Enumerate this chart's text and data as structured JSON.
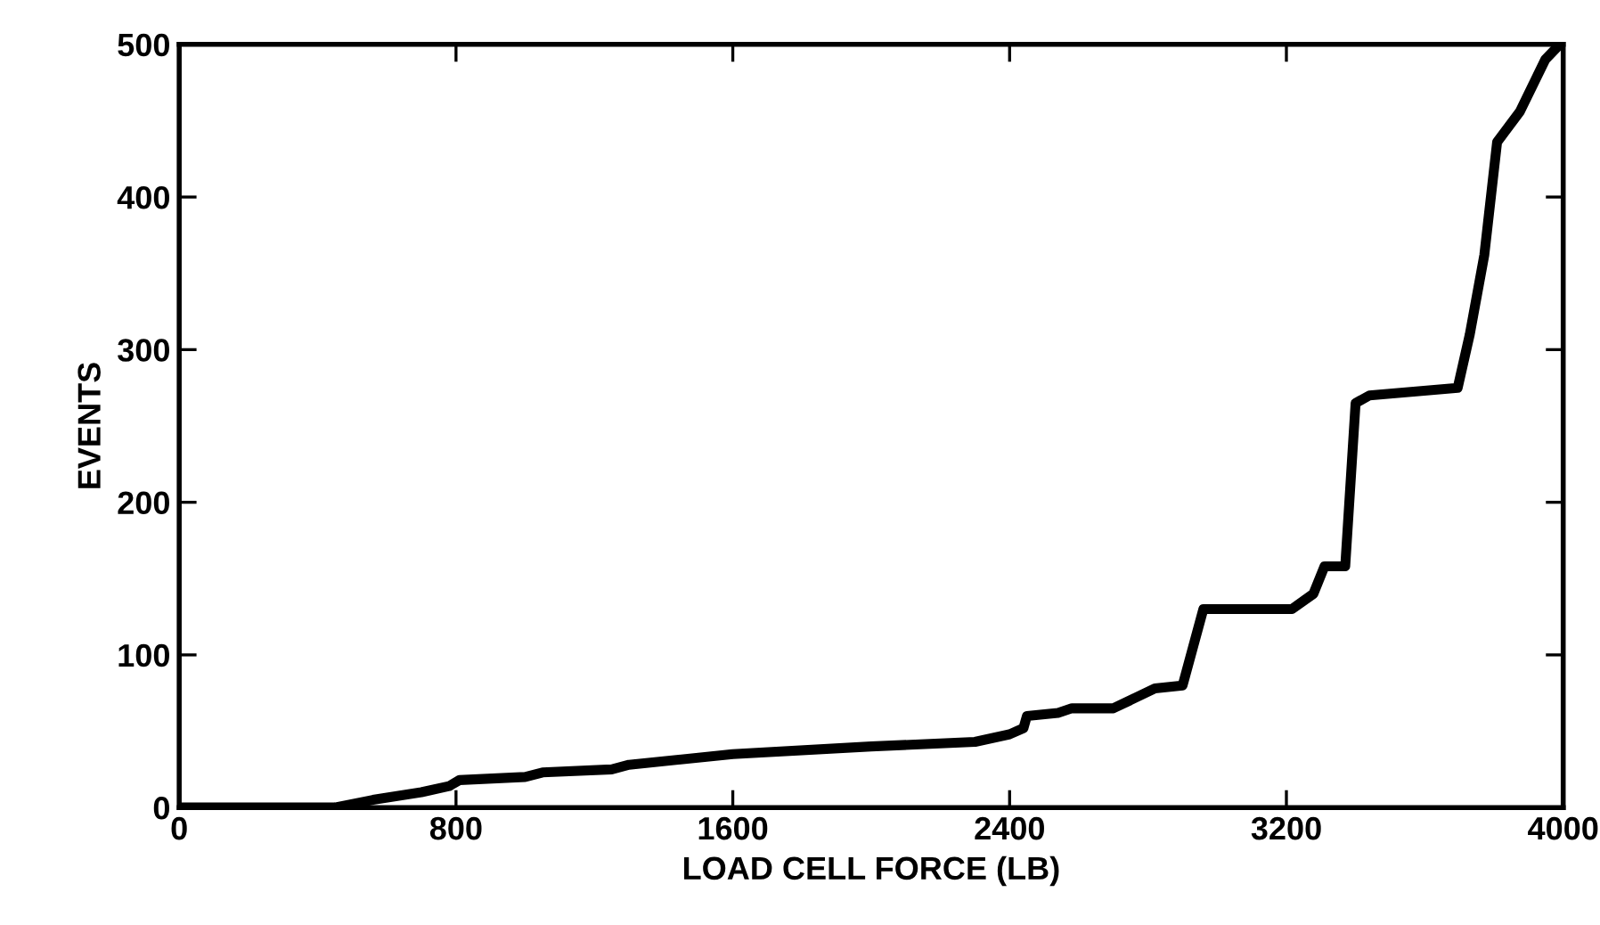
{
  "chart_data": {
    "type": "line",
    "xlabel": "LOAD CELL FORCE (LB)",
    "ylabel": "EVENTS",
    "xlim": [
      0,
      4000
    ],
    "ylim": [
      0,
      500
    ],
    "xticks": [
      0,
      800,
      1600,
      2400,
      3200,
      4000
    ],
    "yticks": [
      0,
      100,
      200,
      300,
      400,
      500
    ],
    "grid": false,
    "marker": "none",
    "line_style": "solid",
    "series": [
      {
        "color": "#000000",
        "x": [
          0,
          450,
          560,
          700,
          780,
          810,
          1000,
          1050,
          1250,
          1300,
          1600,
          2000,
          2300,
          2400,
          2440,
          2450,
          2540,
          2580,
          2700,
          2820,
          2900,
          2960,
          3216,
          3278,
          3310,
          3370,
          3400,
          3440,
          3695,
          3730,
          3772,
          3809,
          3875,
          3948,
          3990
        ],
        "values": [
          0,
          0,
          5,
          10,
          14,
          18,
          20,
          23,
          25,
          28,
          35,
          40,
          43,
          48,
          52,
          60,
          62,
          65,
          65,
          78,
          80,
          130,
          130,
          140,
          158,
          158,
          265,
          270,
          275,
          310,
          362,
          436,
          456,
          490,
          500
        ]
      }
    ]
  }
}
